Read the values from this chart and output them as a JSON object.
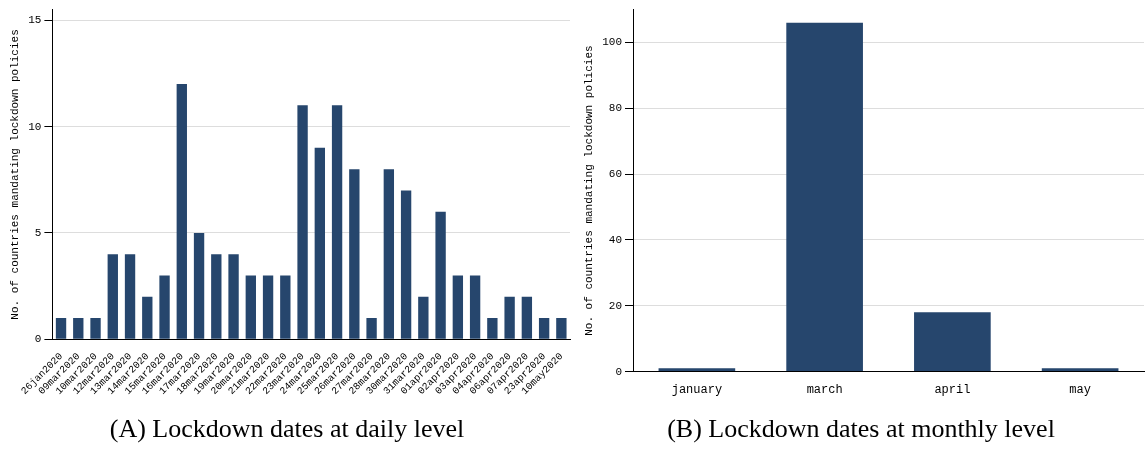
{
  "chart_data": [
    {
      "type": "bar",
      "ylabel": "No. of countries mandating lockdown policies",
      "categories": [
        "26jan2020",
        "09mar2020",
        "10mar2020",
        "12mar2020",
        "13mar2020",
        "14mar2020",
        "15mar2020",
        "16mar2020",
        "17mar2020",
        "18mar2020",
        "19mar2020",
        "20mar2020",
        "21mar2020",
        "22mar2020",
        "23mar2020",
        "24mar2020",
        "25mar2020",
        "26mar2020",
        "27mar2020",
        "28mar2020",
        "30mar2020",
        "31mar2020",
        "01apr2020",
        "02apr2020",
        "03apr2020",
        "04apr2020",
        "06apr2020",
        "07apr2020",
        "23apr2020",
        "10may2020"
      ],
      "values": [
        1,
        1,
        1,
        4,
        4,
        2,
        3,
        12,
        5,
        4,
        4,
        3,
        3,
        3,
        11,
        9,
        11,
        8,
        1,
        8,
        7,
        2,
        6,
        3,
        3,
        1,
        2,
        2,
        1,
        1
      ],
      "color": "#26466d",
      "ylim": [
        0,
        15.5
      ],
      "yticks": [
        0,
        5,
        10,
        15
      ],
      "grid": "y",
      "annotations": [
        "(A) Lockdown dates at daily level"
      ]
    },
    {
      "type": "bar",
      "ylabel": "No. of countries mandating lockdown policies",
      "categories": [
        "january",
        "march",
        "april",
        "may"
      ],
      "values": [
        1,
        106,
        18,
        1
      ],
      "color": "#26466d",
      "ylim": [
        0,
        110
      ],
      "yticks": [
        0,
        20,
        40,
        60,
        80,
        100
      ],
      "grid": "y",
      "annotations": [
        "(B) Lockdown dates at monthly level"
      ]
    }
  ]
}
